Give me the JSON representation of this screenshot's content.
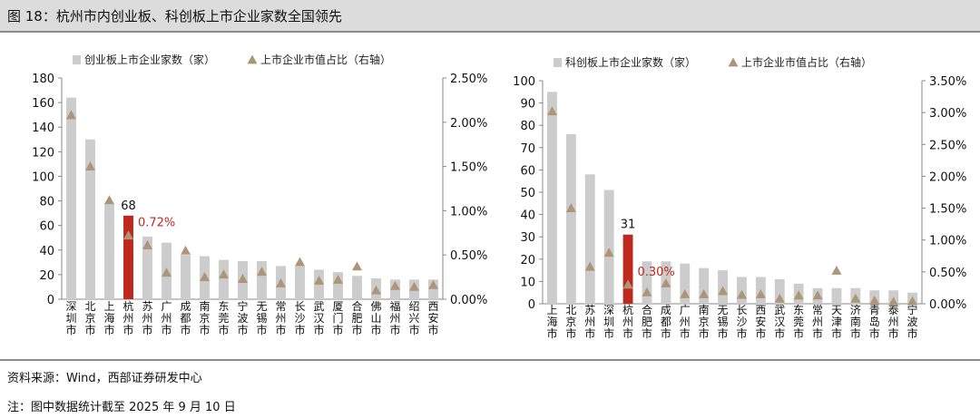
{
  "header": {
    "title": "图 18：杭州市内创业板、科创板上市企业家数全国领先"
  },
  "footer": {
    "source": "资料来源：Wind，西部证券研发中心",
    "note": "注：图中数据统计截至 2025 年 9 月 10 日"
  },
  "colors": {
    "bar": "#cccccc",
    "highlight_bar": "#c0281d",
    "marker": "#ad9578",
    "highlight_text": "#c0281d"
  },
  "chart_data": [
    {
      "type": "bar",
      "title": "",
      "legend_position": "top",
      "legend": [
        "创业板上市企业家数（家）",
        "上市企业市值占比（右轴）"
      ],
      "categories": [
        "深圳市",
        "北京市",
        "上海市",
        "杭州市",
        "苏州市",
        "广州市",
        "成都市",
        "南京市",
        "东莞市",
        "宁波市",
        "无锡市",
        "常州市",
        "长沙市",
        "武汉市",
        "厦门市",
        "合肥市",
        "佛山市",
        "福州市",
        "绍兴市",
        "西安市"
      ],
      "y_ticks": [
        "0",
        "20",
        "40",
        "60",
        "80",
        "100",
        "120",
        "140",
        "160",
        "180"
      ],
      "y2_ticks": [
        "0.00%",
        "0.50%",
        "1.00%",
        "1.50%",
        "2.00%",
        "2.50%"
      ],
      "ylim": [
        0,
        180
      ],
      "y2lim": [
        0,
        2.5
      ],
      "series": [
        {
          "name": "创业板上市企业家数（家）",
          "axis": "left",
          "type": "bar",
          "values": [
            164,
            130,
            78,
            68,
            51,
            46,
            36,
            35,
            32,
            31,
            31,
            27,
            27,
            24,
            22,
            19,
            17,
            16,
            16,
            16
          ]
        },
        {
          "name": "上市企业市值占比（右轴）",
          "axis": "right",
          "type": "marker",
          "values": [
            2.08,
            1.5,
            1.12,
            0.72,
            0.61,
            0.3,
            0.55,
            0.25,
            0.28,
            0.23,
            0.31,
            0.18,
            0.42,
            0.21,
            0.22,
            0.37,
            0.1,
            0.15,
            0.14,
            0.16
          ]
        }
      ],
      "highlight_index": 3,
      "annotations": {
        "bar_value": "68",
        "marker_value": "0.72%"
      }
    },
    {
      "type": "bar",
      "title": "",
      "legend_position": "top",
      "legend": [
        "科创板上市企业家数（家）",
        "上市企业市值占比（右轴）"
      ],
      "categories": [
        "上海市",
        "北京市",
        "苏州市",
        "深圳市",
        "杭州市",
        "合肥市",
        "成都市",
        "广州市",
        "南京市",
        "无锡市",
        "长沙市",
        "西安市",
        "武汉市",
        "东莞市",
        "常州市",
        "天津市",
        "济南市",
        "青岛市",
        "泰州市",
        "宁波市"
      ],
      "y_ticks": [
        "0",
        "10",
        "20",
        "30",
        "40",
        "50",
        "60",
        "70",
        "80",
        "90",
        "100"
      ],
      "y2_ticks": [
        "0.00%",
        "0.50%",
        "1.00%",
        "1.50%",
        "2.00%",
        "2.50%",
        "3.00%",
        "3.50%"
      ],
      "ylim": [
        0,
        100
      ],
      "y2lim": [
        0,
        3.5
      ],
      "series": [
        {
          "name": "科创板上市企业家数（家）",
          "axis": "left",
          "type": "bar",
          "values": [
            95,
            76,
            58,
            51,
            31,
            19,
            19,
            18,
            16,
            15,
            12,
            12,
            11,
            9,
            7,
            7,
            7,
            6,
            6,
            5
          ]
        },
        {
          "name": "上市企业市值占比（右轴）",
          "axis": "right",
          "type": "marker",
          "values": [
            3.02,
            1.5,
            0.58,
            0.8,
            0.3,
            0.18,
            0.32,
            0.15,
            0.15,
            0.2,
            0.14,
            0.15,
            0.08,
            0.13,
            0.13,
            0.52,
            0.08,
            0.05,
            0.03,
            0.04
          ]
        }
      ],
      "highlight_index": 4,
      "annotations": {
        "bar_value": "31",
        "marker_value": "0.30%"
      }
    }
  ]
}
